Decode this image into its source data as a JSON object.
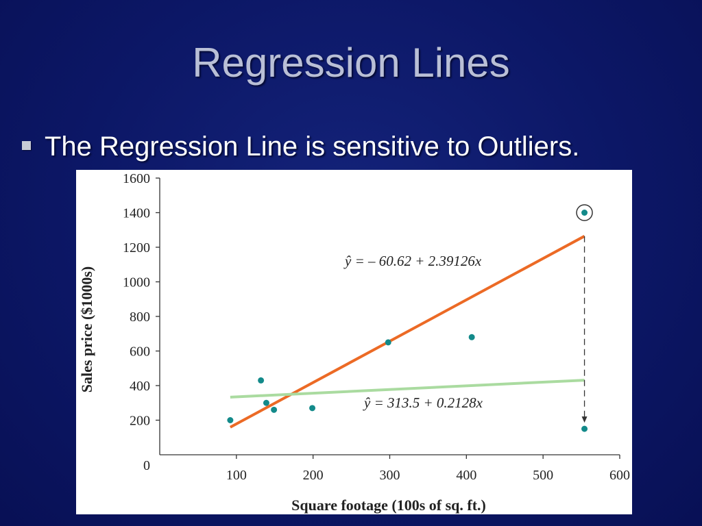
{
  "slide": {
    "title": "Regression Lines",
    "bullet": "The Regression Line is sensitive to Outliers."
  },
  "colors": {
    "background": "#0c1766",
    "title_text": "#b9bfd6",
    "points": "#138a8a",
    "line_with_outlier": "#ec6a25",
    "line_without_outlier": "#aadba0"
  },
  "chart_data": {
    "type": "scatter",
    "title": "",
    "xlabel": "Square footage (100s of sq. ft.)",
    "ylabel": "Sales price ($1000s)",
    "xlim": [
      80,
      600
    ],
    "ylim": [
      0,
      1600
    ],
    "x_ticks": [
      "100",
      "200",
      "300",
      "400",
      "500",
      "600"
    ],
    "y_ticks": [
      "0",
      "200",
      "400",
      "600",
      "800",
      "1000",
      "1200",
      "1400",
      "1600"
    ],
    "points": [
      {
        "x": 92,
        "y": 200
      },
      {
        "x": 132,
        "y": 430
      },
      {
        "x": 139,
        "y": 300
      },
      {
        "x": 149,
        "y": 260
      },
      {
        "x": 199,
        "y": 270
      },
      {
        "x": 298,
        "y": 650
      },
      {
        "x": 407,
        "y": 680
      },
      {
        "x": 554,
        "y": 150
      }
    ],
    "outlier": {
      "x": 554,
      "y": 1400,
      "moved_to_y": 150
    },
    "lines": [
      {
        "equation": "ŷ = – 60.62 + 2.39126x",
        "intercept": -60.62,
        "slope": 2.39126,
        "x_range": [
          92,
          554
        ]
      },
      {
        "equation": "ŷ = 313.5 + 0.2128x",
        "intercept": 313.5,
        "slope": 0.2128,
        "x_range": [
          92,
          554
        ]
      }
    ],
    "grid": false,
    "legend": "none"
  }
}
